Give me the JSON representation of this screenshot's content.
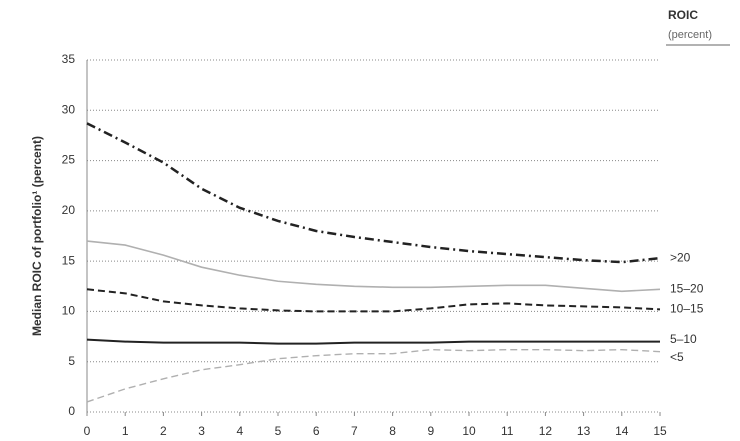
{
  "chart_data": {
    "type": "line",
    "y_label": "Median ROIC of portfolio¹ (percent)",
    "legend_title": "ROIC",
    "legend_subtitle": "(percent)",
    "x": [
      0,
      1,
      2,
      3,
      4,
      5,
      6,
      7,
      8,
      9,
      10,
      11,
      12,
      13,
      14,
      15
    ],
    "xlim": [
      0,
      15
    ],
    "xticks": [
      0,
      1,
      2,
      3,
      4,
      5,
      6,
      7,
      8,
      9,
      10,
      11,
      12,
      13,
      14,
      15
    ],
    "ylim": [
      0,
      35
    ],
    "yticks": [
      0,
      5,
      10,
      15,
      20,
      25,
      30,
      35
    ],
    "grid": true,
    "series": [
      {
        "name": ">20",
        "color": "#222222",
        "style": "dash-dot",
        "values": [
          28.7,
          26.8,
          24.8,
          22.2,
          20.3,
          19.0,
          18.0,
          17.4,
          16.9,
          16.4,
          16.0,
          15.7,
          15.4,
          15.1,
          14.9,
          15.3
        ]
      },
      {
        "name": "15–20",
        "color": "#b0b0b0",
        "style": "solid",
        "values": [
          17.0,
          16.6,
          15.6,
          14.4,
          13.6,
          13.0,
          12.7,
          12.5,
          12.4,
          12.4,
          12.5,
          12.6,
          12.6,
          12.3,
          12.0,
          12.2
        ]
      },
      {
        "name": "10–15",
        "color": "#222222",
        "style": "dashed",
        "values": [
          12.2,
          11.8,
          11.0,
          10.6,
          10.3,
          10.1,
          10.0,
          10.0,
          10.0,
          10.3,
          10.7,
          10.8,
          10.6,
          10.5,
          10.4,
          10.2
        ]
      },
      {
        "name": "5–10",
        "color": "#222222",
        "style": "solid",
        "values": [
          7.2,
          7.0,
          6.9,
          6.9,
          6.9,
          6.8,
          6.8,
          6.9,
          6.9,
          6.9,
          7.0,
          7.0,
          7.0,
          7.0,
          7.0,
          7.0
        ]
      },
      {
        "name": "<5",
        "color": "#b0b0b0",
        "style": "dashed",
        "values": [
          1.0,
          2.3,
          3.3,
          4.2,
          4.7,
          5.3,
          5.6,
          5.8,
          5.8,
          6.2,
          6.1,
          6.2,
          6.2,
          6.1,
          6.2,
          6.0
        ]
      }
    ]
  }
}
